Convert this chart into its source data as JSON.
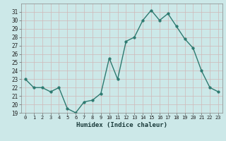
{
  "x": [
    0,
    1,
    2,
    3,
    4,
    5,
    6,
    7,
    8,
    9,
    10,
    11,
    12,
    13,
    14,
    15,
    16,
    17,
    18,
    19,
    20,
    21,
    22,
    23
  ],
  "y": [
    23,
    22,
    22,
    21.5,
    22,
    19.5,
    19,
    20.3,
    20.5,
    21.3,
    25.5,
    23,
    27.5,
    28,
    30,
    31.2,
    30,
    30.8,
    29.3,
    27.8,
    26.7,
    24,
    22,
    21.5
  ],
  "line_color": "#2d7a70",
  "marker_color": "#2d7a70",
  "bg_color": "#cce8e8",
  "grid_color": "#b8d8d8",
  "inner_bg": "#cce8e8",
  "xlabel": "Humidex (Indice chaleur)",
  "ylim": [
    19,
    32
  ],
  "xlim": [
    -0.5,
    23.5
  ],
  "yticks": [
    19,
    20,
    21,
    22,
    23,
    24,
    25,
    26,
    27,
    28,
    29,
    30,
    31
  ],
  "xticks": [
    0,
    1,
    2,
    3,
    4,
    5,
    6,
    7,
    8,
    9,
    10,
    11,
    12,
    13,
    14,
    15,
    16,
    17,
    18,
    19,
    20,
    21,
    22,
    23
  ],
  "line_width": 1.0,
  "marker_size": 2.5
}
